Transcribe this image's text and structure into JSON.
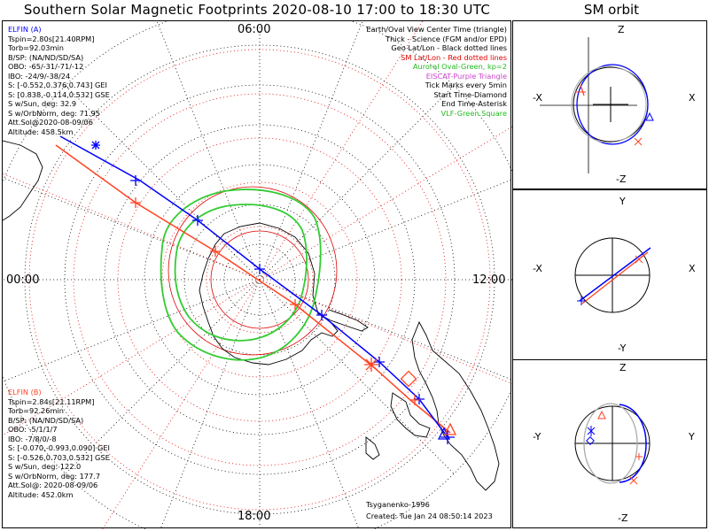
{
  "title": "Southern Solar Magnetic Footprints 2020-08-10 17:00 to 18:30 UTC",
  "orbit_title": "SM orbit",
  "clock_labels": {
    "top": "06:00",
    "left": "00:00",
    "right": "12:00",
    "bottom": "18:00"
  },
  "legend": [
    {
      "text": "Earth/Oval View Center Time (triangle)",
      "color": "#000000"
    },
    {
      "text": "Thick - Science (FGM and/or EPD)",
      "color": "#000000"
    },
    {
      "text": "Geo Lat/Lon - Black dotted lines",
      "color": "#000000"
    },
    {
      "text": "SM Lat/Lon - Red dotted lines",
      "color": "#e00000"
    },
    {
      "text": "Auroral Oval-Green, kp=2",
      "color": "#22bb22"
    },
    {
      "text": "EISCAT-Purple Triangle",
      "color": "#cc44cc"
    },
    {
      "text": "Tick Marks every 5min",
      "color": "#000000"
    },
    {
      "text": "Start Time-Diamond",
      "color": "#000000"
    },
    {
      "text": "End Time-Asterisk",
      "color": "#000000"
    },
    {
      "text": "VLF-Green Square",
      "color": "#22bb22"
    }
  ],
  "elfin_a": {
    "name": "ELFIN (A)",
    "color": "#0000ff",
    "lines": [
      "Tspin=2.80s[21.40RPM]",
      "Torb=92.03min",
      "B/SP: (NA/ND/SD/SA)",
      "OBO: -65/-31/-71/-12",
      "IBO: -24/9/-38/24",
      "S: [-0.552,0.376,0.743] GEI",
      "S: [0.838,-0.114,0.532] GSE",
      "S w/Sun, deg: 32.9",
      "S w/OrbNorm, deg: 71.95",
      "Att.Sol@2020-08-09/06",
      "Altitude: 458.5km"
    ]
  },
  "elfin_b": {
    "name": "ELFIN (B)",
    "color": "#ff4422",
    "lines": [
      "Tspin=2.84s[21.11RPM]",
      "Torb=92.26min",
      "B/SP: (NA/ND/SD/SA)",
      "OBO: -5/1/1/7",
      "IBO: -7/8/0/-8",
      "S: [-0.070,-0.993,0.090] GEI",
      "S: [-0.526,0.703,0.532] GSE",
      "S w/Sun, deg: 122.0",
      "S w/OrbNorm, deg: 177.7",
      "Att.Sol@: 2020-08-09/06",
      "Altitude: 452.0km"
    ]
  },
  "footer": {
    "model": "Tsyganenko-1996",
    "created": "Created: Tue Jan 24 08:50:14 2023"
  },
  "orbit_panels": [
    {
      "top": "Z",
      "bottom": "-Z",
      "left": "-X",
      "right": "X"
    },
    {
      "top": "Y",
      "bottom": "-Y",
      "left": "-X",
      "right": "X"
    },
    {
      "top": "Z",
      "bottom": "-Z",
      "left": "-Y",
      "right": "Y"
    }
  ],
  "colors": {
    "track_a": "#0000ff",
    "track_b": "#ff4422",
    "sm_grid": "#e00000",
    "oval": "#33cc33",
    "geo_grid": "#000000"
  }
}
